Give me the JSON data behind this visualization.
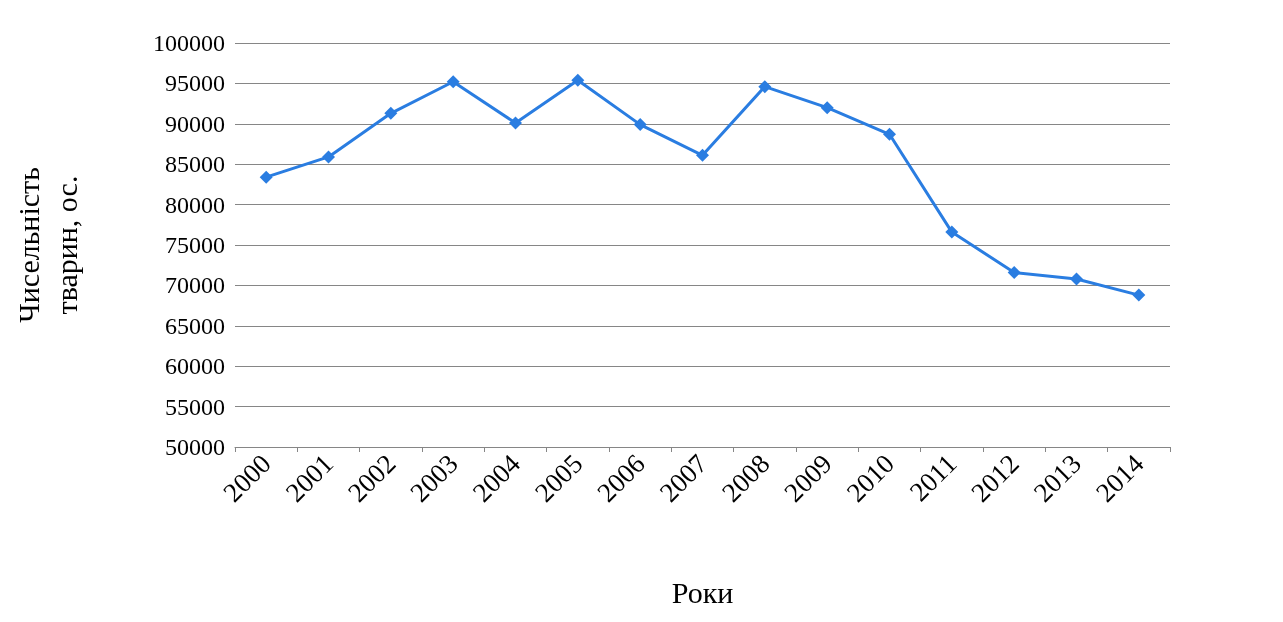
{
  "chart_data": {
    "type": "line",
    "categories": [
      "2000",
      "2001",
      "2002",
      "2003",
      "2004",
      "2005",
      "2006",
      "2007",
      "2008",
      "2009",
      "2010",
      "2011",
      "2012",
      "2013",
      "2014"
    ],
    "series": [
      {
        "color": "#2a7de1",
        "values": [
          83400,
          85900,
          91300,
          95200,
          90100,
          95400,
          89900,
          86100,
          94600,
          92000,
          88700,
          76600,
          71600,
          70800,
          68800
        ]
      }
    ],
    "xlabel": "Роки",
    "ylabel": "Чисельність тварин, ос.",
    "ylim": [
      50000,
      100000
    ],
    "yticks": [
      50000,
      55000,
      60000,
      65000,
      70000,
      75000,
      80000,
      85000,
      90000,
      95000,
      100000
    ],
    "grid": "y",
    "marker": "diamond",
    "line_style": "solid"
  }
}
